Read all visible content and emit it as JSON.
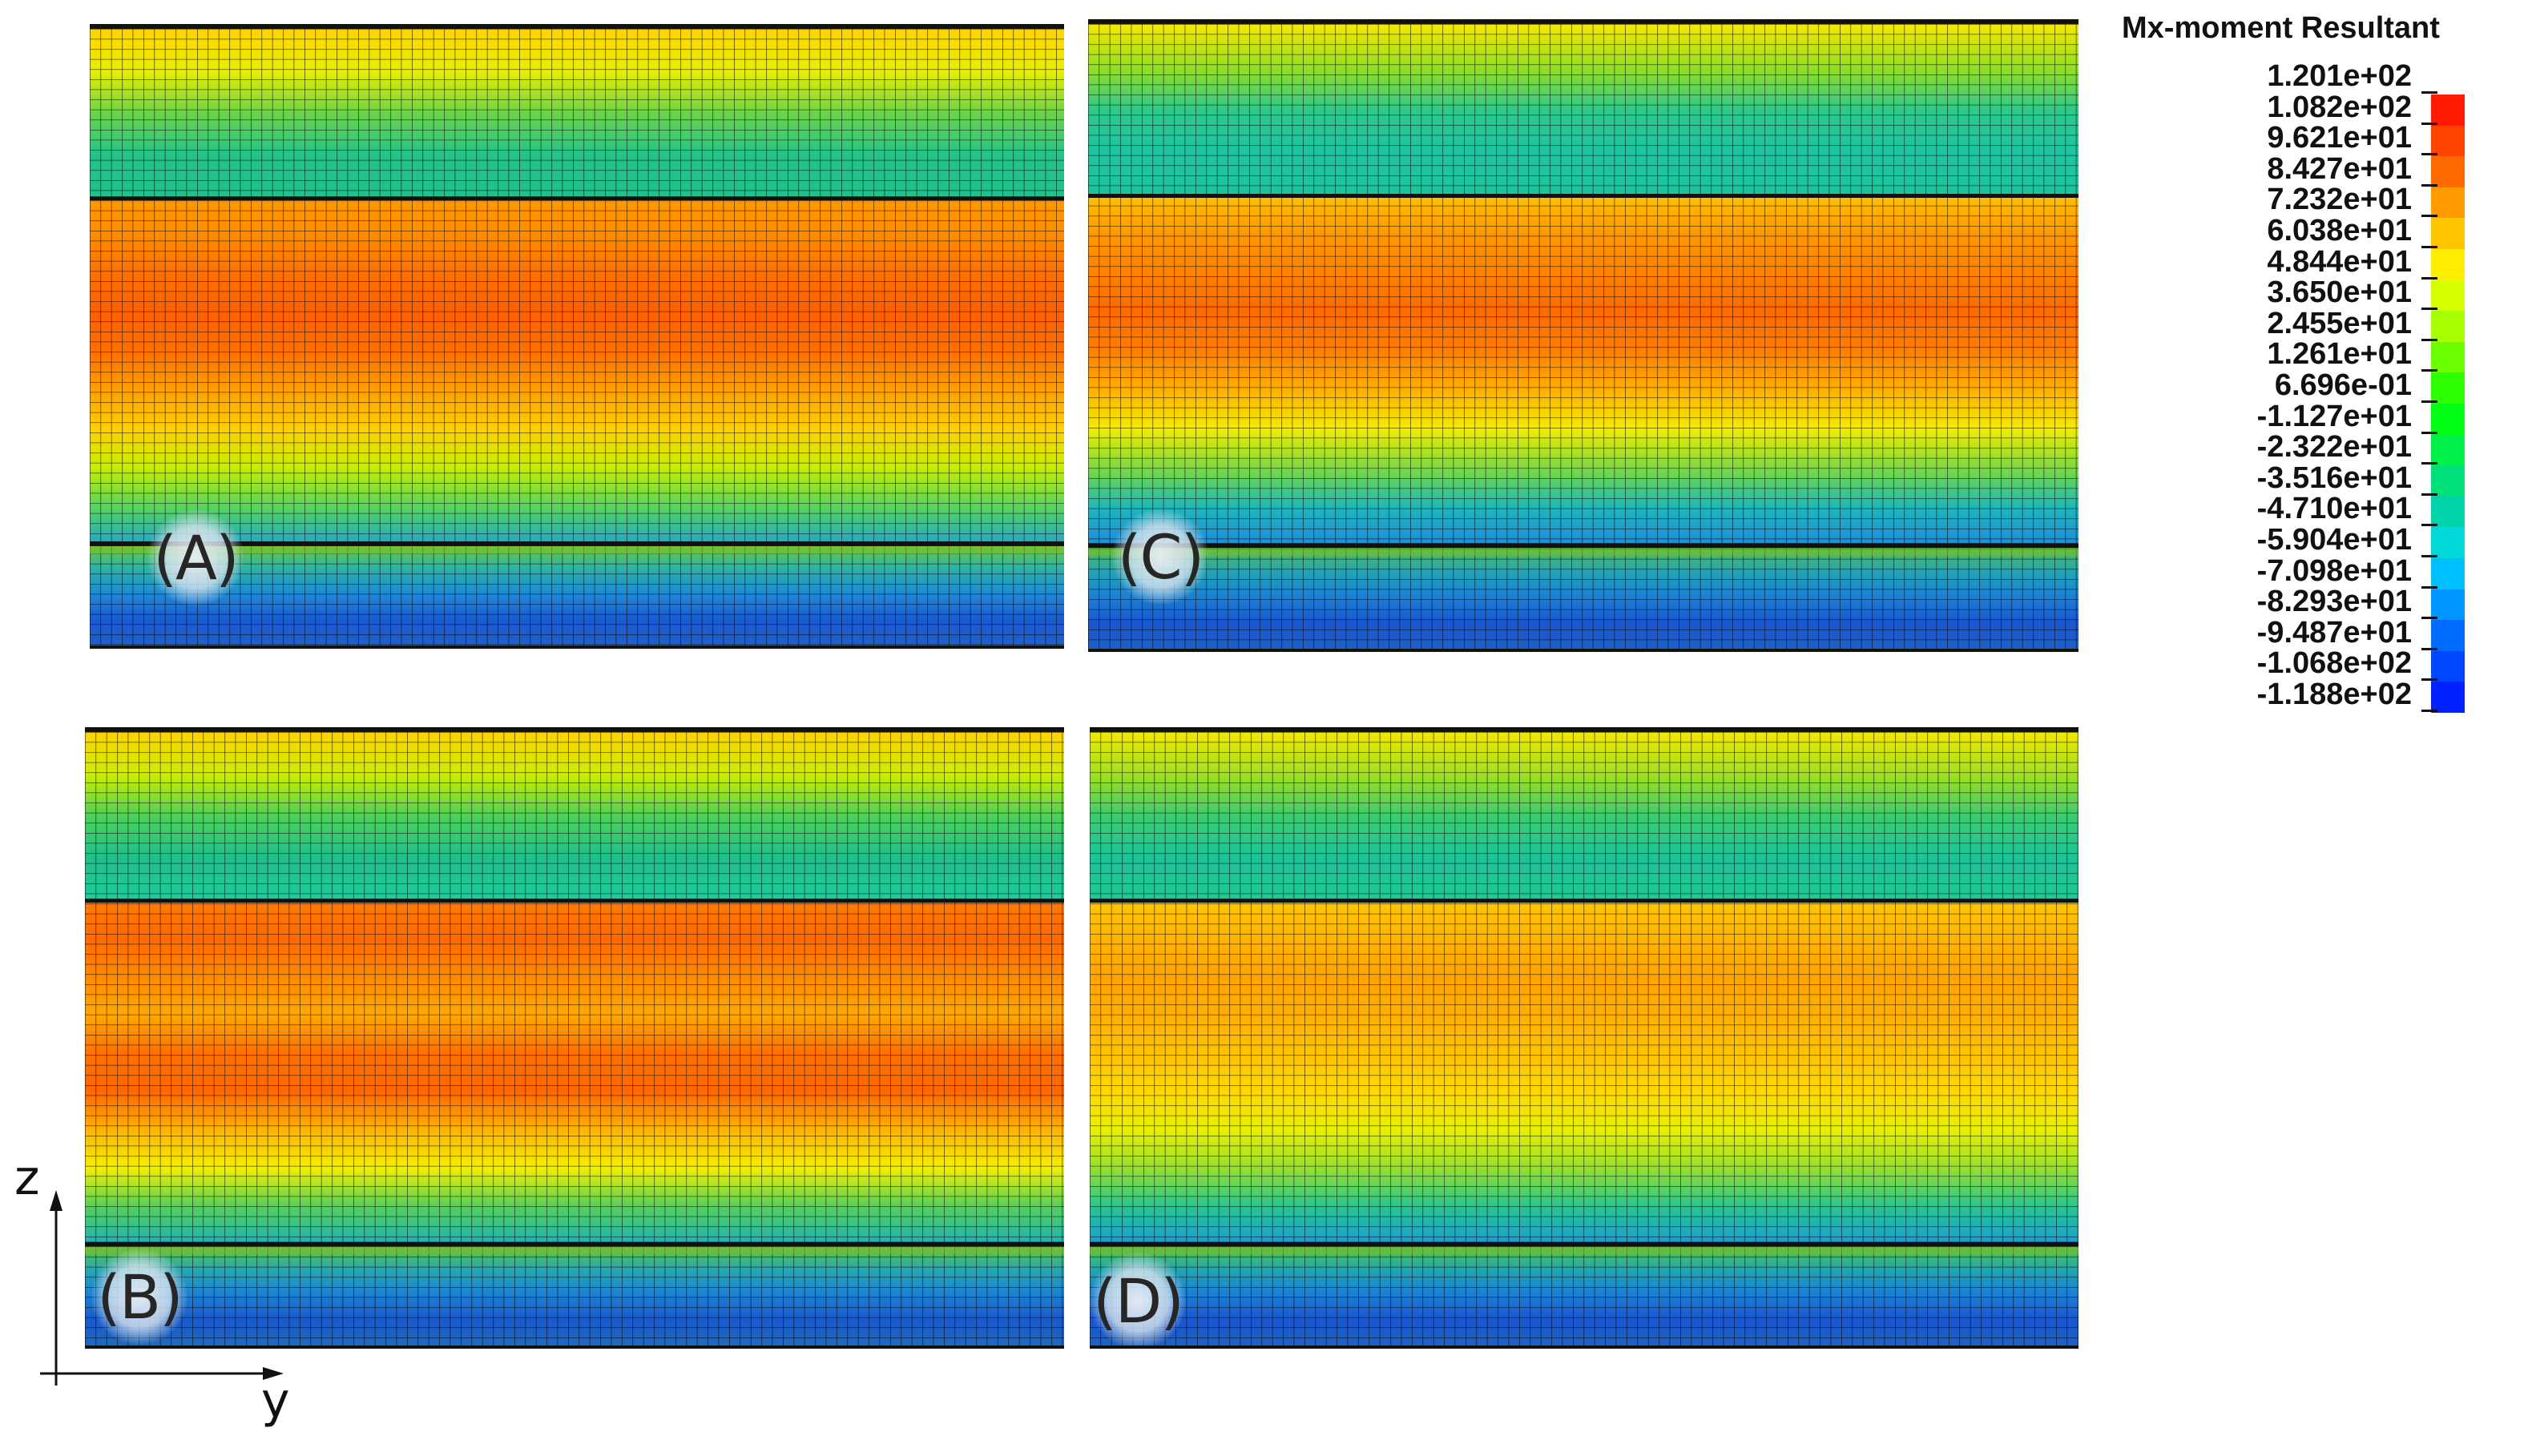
{
  "legend": {
    "title": "Mx-moment Resultant",
    "values": [
      "1.201e+02",
      "1.082e+02",
      "9.621e+01",
      "8.427e+01",
      "7.232e+01",
      "6.038e+01",
      "4.844e+01",
      "3.650e+01",
      "2.455e+01",
      "1.261e+01",
      "6.696e-01",
      "-1.127e+01",
      "-2.322e+01",
      "-3.516e+01",
      "-4.710e+01",
      "-5.904e+01",
      "-7.098e+01",
      "-8.293e+01",
      "-9.487e+01",
      "-1.068e+02",
      "-1.188e+02"
    ],
    "colors": [
      "#ff1a00",
      "#ff4400",
      "#ff6a00",
      "#ff9a00",
      "#ffc400",
      "#ffee00",
      "#d8ff00",
      "#a8ff00",
      "#6cff00",
      "#2eff00",
      "#00ff14",
      "#00f04a",
      "#00e07a",
      "#00d2aa",
      "#00d8d8",
      "#00bfff",
      "#0096ff",
      "#006cff",
      "#0046ff",
      "#0020ff"
    ]
  },
  "axes": {
    "vertical": "z",
    "horizontal": "y"
  },
  "panels": [
    {
      "label": "(A)",
      "upper": [
        "#ffd300",
        "#e8ef00",
        "#6ad44a",
        "#22c38a",
        "#22c08a"
      ],
      "middle": [
        "#ff9a00",
        "#ff8a00",
        "#ff7000",
        "#ff6000",
        "#ff7000",
        "#ffa000",
        "#ffd000",
        "#c8ee00",
        "#5bd55a",
        "#22a8c8"
      ],
      "lower": [
        "#74ca3a",
        "#2bb2a8",
        "#1e88d8",
        "#1a5ad2",
        "#2060c8"
      ]
    },
    {
      "label": "(B)",
      "upper": [
        "#ffd200",
        "#cdee00",
        "#4dd05a",
        "#1fc08c",
        "#1fcb9a"
      ],
      "middle": [
        "#ff7a00",
        "#ff6a00",
        "#ff8a00",
        "#ffa800",
        "#ff7000",
        "#ff6800",
        "#ffb400",
        "#f4f000",
        "#56d15a",
        "#1fb0b8"
      ],
      "lower": [
        "#6ac83a",
        "#26a8b0",
        "#1c80d4",
        "#1a5acc",
        "#1e6ac0"
      ]
    },
    {
      "label": "(C)",
      "upper": [
        "#f8e800",
        "#96df22",
        "#2ec98a",
        "#1dc4a2",
        "#1dc49a"
      ],
      "middle": [
        "#ffc000",
        "#ff9800",
        "#ff8200",
        "#ff6a00",
        "#ff8000",
        "#ffb000",
        "#f2ec00",
        "#7cdb40",
        "#20b8b8",
        "#1d8ce0"
      ],
      "lower": [
        "#58c44a",
        "#22a4b4",
        "#1a80d6",
        "#1a56d0",
        "#1c60c8"
      ]
    },
    {
      "label": "(D)",
      "upper": [
        "#f2e800",
        "#a2e020",
        "#3ccc70",
        "#1cc49a",
        "#20c892"
      ],
      "middle": [
        "#ffc600",
        "#ffb400",
        "#ffa400",
        "#ffb000",
        "#ffc200",
        "#ffd800",
        "#e8f000",
        "#98e030",
        "#28c68e",
        "#1c9cd6"
      ],
      "lower": [
        "#5ec640",
        "#20a6b0",
        "#1a7ed6",
        "#1a56d0",
        "#1e62c4"
      ]
    }
  ]
}
